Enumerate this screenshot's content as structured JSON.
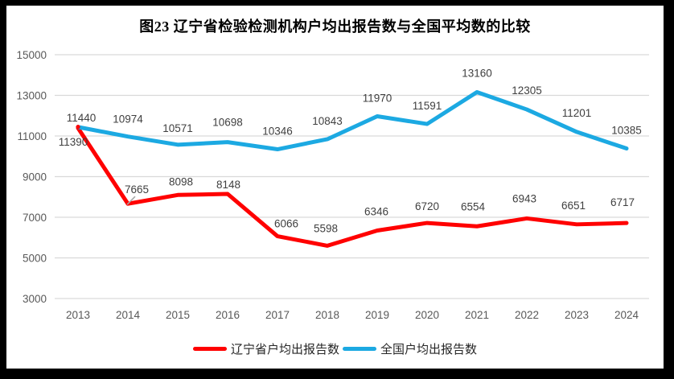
{
  "frame": {
    "background": "#000000",
    "panel_background": "#FFFFFF"
  },
  "chart_data": {
    "type": "line",
    "title": "图23 辽宁省检验检测机构户均出报告数与全国平均数的比较",
    "categories": [
      "2013",
      "2014",
      "2015",
      "2016",
      "2017",
      "2018",
      "2019",
      "2020",
      "2021",
      "2022",
      "2023",
      "2024"
    ],
    "series": [
      {
        "name": "辽宁省户均出报告数",
        "color": "#FF0000",
        "values": [
          11390,
          7665,
          8098,
          8148,
          6066,
          5598,
          6346,
          6720,
          6554,
          6943,
          6651,
          6717
        ]
      },
      {
        "name": "全国户均出报告数",
        "color": "#1CA9E2",
        "values": [
          11440,
          10974,
          10571,
          10698,
          10346,
          10843,
          11970,
          11591,
          13160,
          12305,
          11201,
          10385
        ]
      }
    ],
    "xlabel": "",
    "ylabel": "",
    "ylim": [
      3000,
      15000
    ],
    "yticks": [
      3000,
      5000,
      7000,
      9000,
      11000,
      13000,
      15000
    ],
    "grid": true,
    "data_labels": true,
    "legend_position": "bottom",
    "colors": {
      "grid": "#D9D9D9",
      "axis_text": "#595959",
      "data_label_text": "#3F3F3F",
      "leader_line": "#A6A6A6"
    }
  }
}
